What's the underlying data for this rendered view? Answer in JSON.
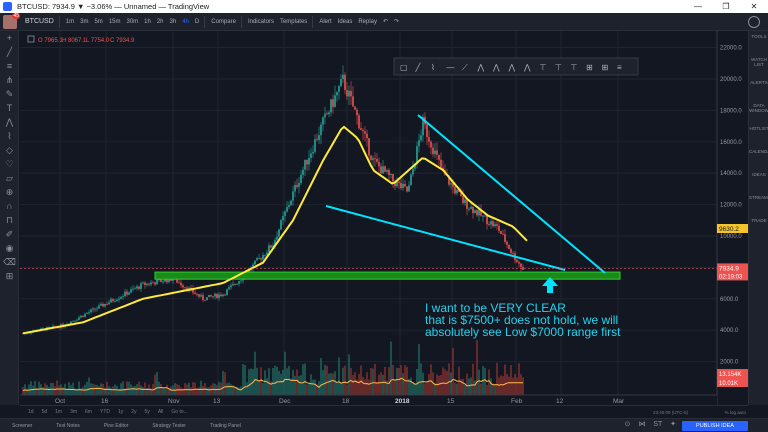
{
  "window": {
    "title": "BTCUSD: 7934.9 ▼ −3.06% — Unnamed — TradingView",
    "controls": [
      "—",
      "❐",
      "✕"
    ]
  },
  "toolbar": {
    "avatar_badge": "45",
    "symbol": "BTCUSD",
    "intervals": [
      "1m",
      "3m",
      "5m",
      "15m",
      "30m",
      "1h",
      "2h",
      "3h",
      "4h",
      "D"
    ],
    "active_interval": "4h",
    "compare": "Compare",
    "indicators": "Indicators",
    "templates": "Templates",
    "alert": "Alert",
    "ideas": "Ideas",
    "replay": "Replay"
  },
  "legend": {
    "open": "O 7965.1",
    "high": "H 8067.1",
    "low": "L 7754.0",
    "close": "C 7934.9"
  },
  "price_labels": {
    "ma_value": "9630.2",
    "last_price": "7934.9",
    "countdown": "02:19:03",
    "vol_a": "13.154K",
    "vol_b": "10.01K"
  },
  "annotation": {
    "line1": "I want to be VERY CLEAR",
    "line2": "that is $7500+ does not hold, we will",
    "line3": "absolutely see Low $7000  range first"
  },
  "range_bar": {
    "ranges": [
      "1d",
      "5d",
      "1m",
      "3m",
      "6m",
      "YTD",
      "1y",
      "2y",
      "5y",
      "All",
      "Go to..."
    ],
    "clock": "23:40:09 (UTC-5)",
    "options": [
      "%",
      "log",
      "auto"
    ]
  },
  "bottom_bar": {
    "tabs": [
      "Screener",
      "Text Notes",
      "Pine Editor",
      "Strategy Tester",
      "Trading Panel"
    ],
    "publish": "PUBLISH IDEA",
    "icons_text": "ST"
  },
  "right_tools": [
    "TOOLS",
    "WATCH LIST",
    "ALERTS",
    "DATA WINDOW",
    "HOTLIST",
    "CALENDAR",
    "IDEAS",
    "STREAMS",
    "TRADE"
  ],
  "chart_data": {
    "type": "line",
    "series_style": "candlestick with moving average",
    "y_ticks": [
      2000,
      4000,
      6000,
      8000,
      10000,
      12000,
      14000,
      16000,
      18000,
      20000,
      22000
    ],
    "y_tick_labels": [
      "2000.0",
      "4000.0",
      "6000.0",
      "8000.0",
      "10000.0",
      "12000.0",
      "14000.0",
      "16000.0",
      "18000.0",
      "20000.0",
      "22000.0"
    ],
    "ylim": [
      0,
      22800
    ],
    "x_tick_labels": [
      "Oct",
      "16",
      "Nov",
      "13",
      "Dec",
      "18",
      "2018",
      "15",
      "Feb",
      "12",
      "Mar"
    ],
    "price_path": [
      [
        0,
        3800
      ],
      [
        40,
        4300
      ],
      [
        80,
        5600
      ],
      [
        120,
        6900
      ],
      [
        150,
        7300
      ],
      [
        180,
        6000
      ],
      [
        200,
        6300
      ],
      [
        220,
        7400
      ],
      [
        250,
        9500
      ],
      [
        275,
        13500
      ],
      [
        300,
        17200
      ],
      [
        320,
        19900
      ],
      [
        335,
        17400
      ],
      [
        350,
        14800
      ],
      [
        370,
        13500
      ],
      [
        385,
        12800
      ],
      [
        400,
        17200
      ],
      [
        420,
        14000
      ],
      [
        440,
        12200
      ],
      [
        460,
        11200
      ],
      [
        475,
        10500
      ],
      [
        490,
        8800
      ],
      [
        500,
        7900
      ]
    ],
    "ma_path": [
      [
        0,
        3800
      ],
      [
        60,
        4500
      ],
      [
        120,
        6000
      ],
      [
        160,
        6500
      ],
      [
        200,
        7000
      ],
      [
        240,
        8300
      ],
      [
        270,
        11000
      ],
      [
        300,
        14800
      ],
      [
        320,
        17000
      ],
      [
        335,
        16200
      ],
      [
        350,
        14200
      ],
      [
        370,
        13300
      ],
      [
        400,
        15000
      ],
      [
        420,
        14200
      ],
      [
        445,
        12300
      ],
      [
        465,
        11300
      ],
      [
        490,
        10600
      ],
      [
        505,
        9630
      ]
    ],
    "support_zone": [
      7250,
      7700
    ],
    "last_price": 7934.9
  },
  "colors": {
    "background": "#131722",
    "candle_up": "#26a69a",
    "candle_down": "#ef5350",
    "moving_average": "#ffeb3b",
    "trendline": "#00e5ff",
    "support_zone": "#1b8a1b",
    "annotation_text": "#22d3ee",
    "accent": "#2962ff"
  }
}
